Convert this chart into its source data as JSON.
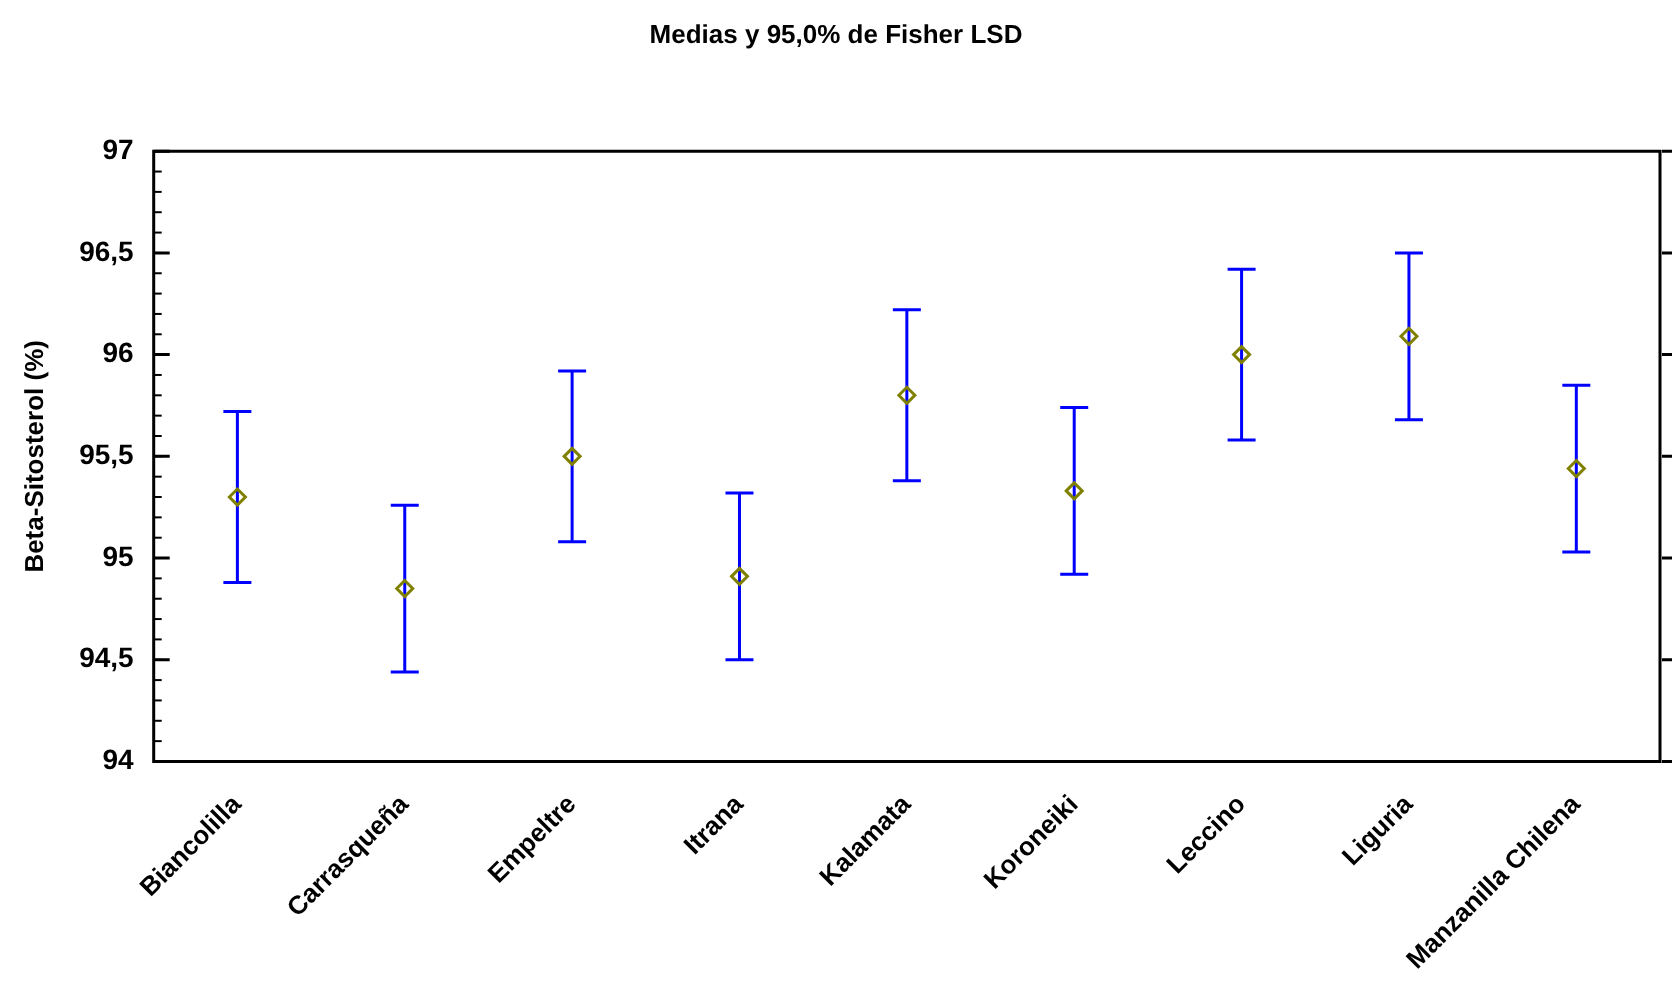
{
  "chart_data": {
    "type": "scatter",
    "title": "Medias y 95,0% de Fisher LSD",
    "ylabel": "Beta-Sitosterol (%)",
    "categories": [
      "Biancolilla",
      "Carrasqueña",
      "Empeltre",
      "Itrana",
      "Kalamata",
      "Koroneiki",
      "Leccino",
      "Liguria",
      "Manzanilla Chilena"
    ],
    "series": [
      {
        "color": "#808000",
        "values": [
          95.3,
          94.85,
          95.5,
          94.91,
          95.8,
          95.33,
          96.0,
          96.09,
          95.44
        ],
        "errors": [
          0.42,
          0.41,
          0.42,
          0.41,
          0.42,
          0.41,
          0.42,
          0.41,
          0.41
        ]
      }
    ],
    "ylim": [
      94,
      97
    ],
    "yticks": [
      94,
      {
        "value": 94.5,
        "label": "94,5"
      },
      95,
      {
        "value": 95.5,
        "label": "95,5"
      },
      96,
      {
        "value": 96.5,
        "label": "96,5"
      },
      97
    ],
    "marker": "diamond",
    "grid": false,
    "legend": false
  }
}
